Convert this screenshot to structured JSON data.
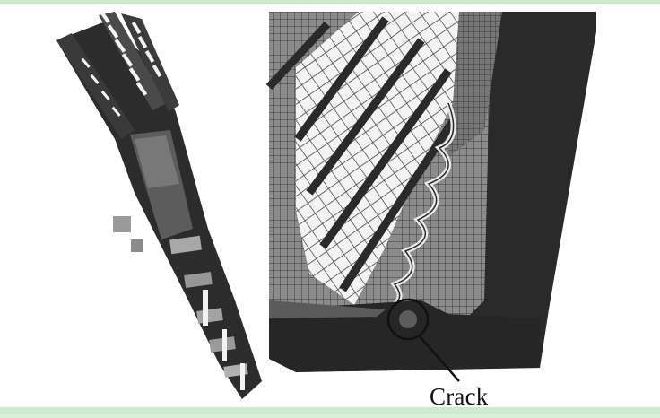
{
  "figure": {
    "annotations": {
      "crack_label": "Crack"
    },
    "colors": {
      "mesh_dark": "#2b2b2b",
      "mesh_mid": "#6f6f6f",
      "mesh_light": "#f2f2f2",
      "border": "#cfe9cf"
    }
  }
}
